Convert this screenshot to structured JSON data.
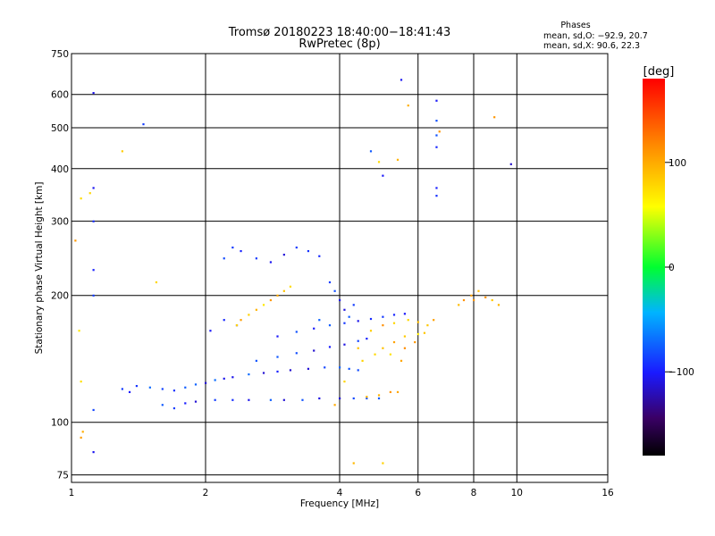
{
  "chart_data": {
    "type": "scatter",
    "title": "Tromsø 20180223 18:40:00−18:41:43",
    "subtitle": "RwPretec (8p)",
    "stats": {
      "heading": "Phases",
      "line1": "mean, sd,O: −92.9, 20.7",
      "line2": "mean, sd,X:  90.6, 22.3"
    },
    "xlabel": "Frequency [MHz]",
    "ylabel": "Stationary phase Virtual Height [km]",
    "x_scale": "log2",
    "y_scale": "log",
    "xlim": [
      1,
      16
    ],
    "ylim": [
      72,
      750
    ],
    "x_ticks": [
      1,
      2,
      4,
      6,
      8,
      10,
      16
    ],
    "x_tick_labels": [
      "1",
      "2",
      "4",
      "6",
      "8",
      "10",
      "16"
    ],
    "y_ticks": [
      75,
      100,
      200,
      300,
      400,
      500,
      600,
      750
    ],
    "y_tick_labels": [
      "75",
      "100",
      "200",
      "300",
      "400",
      "500",
      "600",
      "750"
    ],
    "grid": true,
    "colorbar": {
      "label": "[deg]",
      "range": [
        -180,
        180
      ],
      "ticks": [
        100,
        0,
        -100
      ],
      "tick_labels": [
        "100",
        "0",
        "−100"
      ]
    },
    "series": [
      {
        "points": [
          [
            1.3,
            120
          ],
          [
            1.35,
            118
          ],
          [
            1.4,
            122
          ],
          [
            1.5,
            121
          ],
          [
            1.6,
            120
          ],
          [
            1.7,
            119
          ],
          [
            1.8,
            121
          ],
          [
            1.9,
            123
          ],
          [
            2.0,
            124
          ],
          [
            2.1,
            126
          ],
          [
            2.2,
            127
          ],
          [
            2.3,
            128
          ],
          [
            2.5,
            130
          ],
          [
            2.7,
            131
          ],
          [
            2.9,
            132
          ],
          [
            3.1,
            133
          ],
          [
            3.4,
            134
          ],
          [
            3.7,
            135
          ],
          [
            4.0,
            135
          ],
          [
            4.2,
            134
          ],
          [
            4.4,
            133
          ],
          [
            1.9,
            112
          ],
          [
            2.1,
            113
          ],
          [
            2.3,
            113
          ],
          [
            2.5,
            113
          ],
          [
            2.8,
            113
          ],
          [
            3.0,
            113
          ],
          [
            3.3,
            113
          ],
          [
            3.6,
            114
          ],
          [
            4.0,
            114
          ],
          [
            4.3,
            114
          ],
          [
            4.6,
            114
          ],
          [
            4.9,
            114
          ],
          [
            2.6,
            140
          ],
          [
            2.9,
            143
          ],
          [
            3.2,
            146
          ],
          [
            3.5,
            148
          ],
          [
            3.8,
            151
          ],
          [
            4.1,
            153
          ],
          [
            4.4,
            156
          ],
          [
            4.6,
            158
          ],
          [
            2.9,
            160
          ],
          [
            3.2,
            164
          ],
          [
            3.5,
            167
          ],
          [
            3.8,
            170
          ],
          [
            4.1,
            172
          ],
          [
            4.4,
            174
          ],
          [
            4.7,
            176
          ],
          [
            5.0,
            178
          ],
          [
            5.3,
            180
          ],
          [
            5.6,
            181
          ],
          [
            1.6,
            110
          ],
          [
            1.7,
            108
          ],
          [
            1.8,
            111
          ],
          [
            2.2,
            245
          ],
          [
            2.3,
            260
          ],
          [
            2.4,
            255
          ],
          [
            2.6,
            245
          ],
          [
            2.8,
            240
          ],
          [
            3.0,
            250
          ],
          [
            3.2,
            260
          ],
          [
            3.4,
            255
          ],
          [
            3.6,
            248
          ],
          [
            2.05,
            165
          ],
          [
            2.2,
            175
          ],
          [
            2.35,
            170
          ],
          [
            3.9,
            205
          ],
          [
            4.0,
            195
          ],
          [
            4.1,
            185
          ],
          [
            4.2,
            178
          ],
          [
            3.8,
            215
          ],
          [
            4.3,
            190
          ],
          [
            3.6,
            175
          ],
          [
            1.12,
            360
          ],
          [
            1.12,
            300
          ],
          [
            1.12,
            230
          ],
          [
            1.12,
            200
          ],
          [
            1.12,
            107
          ],
          [
            1.12,
            85
          ],
          [
            1.12,
            605
          ],
          [
            1.45,
            510
          ],
          [
            9.7,
            410
          ],
          [
            6.6,
            580
          ],
          [
            6.6,
            520
          ],
          [
            6.6,
            480
          ],
          [
            6.6,
            450
          ],
          [
            6.6,
            360
          ],
          [
            6.6,
            345
          ],
          [
            5.5,
            650
          ],
          [
            5.0,
            385
          ],
          [
            4.7,
            440
          ]
        ]
      },
      {
        "points": [
          [
            2.5,
            180
          ],
          [
            2.6,
            185
          ],
          [
            2.7,
            190
          ],
          [
            2.8,
            195
          ],
          [
            2.9,
            200
          ],
          [
            3.0,
            205
          ],
          [
            3.1,
            210
          ],
          [
            2.4,
            175
          ],
          [
            2.35,
            170
          ],
          [
            4.8,
            145
          ],
          [
            5.0,
            150
          ],
          [
            5.3,
            155
          ],
          [
            5.6,
            160
          ],
          [
            6.0,
            162
          ],
          [
            6.2,
            163
          ],
          [
            5.2,
            145
          ],
          [
            5.6,
            150
          ],
          [
            4.5,
            140
          ],
          [
            4.6,
            115
          ],
          [
            4.9,
            116
          ],
          [
            5.2,
            118
          ],
          [
            5.4,
            118
          ],
          [
            5.0,
            170
          ],
          [
            5.3,
            172
          ],
          [
            5.7,
            175
          ],
          [
            6.0,
            173
          ],
          [
            6.3,
            170
          ],
          [
            6.5,
            175
          ],
          [
            7.4,
            190
          ],
          [
            7.6,
            195
          ],
          [
            7.9,
            200
          ],
          [
            8.2,
            205
          ],
          [
            8.5,
            198
          ],
          [
            8.8,
            195
          ],
          [
            9.1,
            190
          ],
          [
            8.0,
            195
          ],
          [
            4.4,
            150
          ],
          [
            4.7,
            165
          ],
          [
            5.5,
            140
          ],
          [
            5.9,
            155
          ],
          [
            1.02,
            270
          ],
          [
            1.05,
            340
          ],
          [
            1.1,
            350
          ],
          [
            1.3,
            440
          ],
          [
            1.04,
            165
          ],
          [
            1.05,
            125
          ],
          [
            1.06,
            95
          ],
          [
            1.05,
            92
          ],
          [
            1.55,
            215
          ],
          [
            4.3,
            80
          ],
          [
            5.0,
            80
          ],
          [
            4.9,
            415
          ],
          [
            5.4,
            420
          ],
          [
            5.7,
            565
          ],
          [
            6.7,
            490
          ],
          [
            8.9,
            530
          ],
          [
            4.1,
            125
          ],
          [
            3.9,
            110
          ]
        ]
      }
    ]
  }
}
